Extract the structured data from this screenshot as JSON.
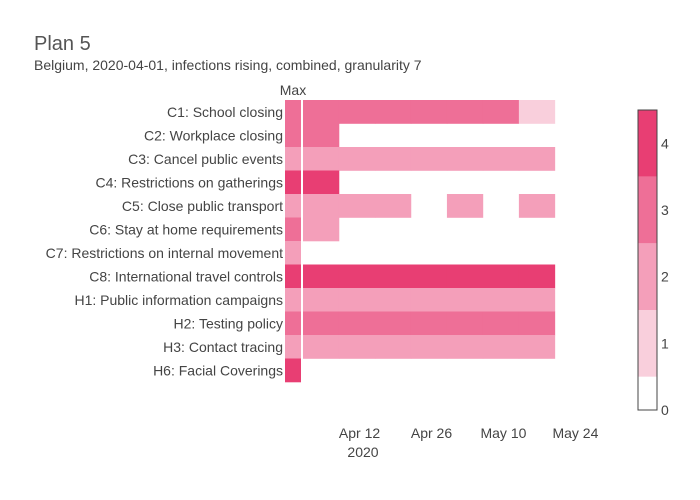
{
  "chart_data": {
    "type": "heatmap",
    "title": "Plan 5",
    "subtitle": "Belgium, 2020-04-01, infections rising, combined, granularity 7",
    "max_column_label": "Max",
    "rows": [
      "C1: School closing",
      "C2: Workplace closing",
      "C3: Cancel public events",
      "C4: Restrictions on gatherings",
      "C5: Close public transport",
      "C6: Stay at home requirements",
      "C7: Restrictions on internal movement",
      "C8: International travel controls",
      "H1: Public information campaigns",
      "H2: Testing policy",
      "H3: Contact tracing",
      "H6: Facial Coverings"
    ],
    "max_values": [
      3,
      3,
      2,
      4,
      2,
      3,
      2,
      4,
      2,
      3,
      2,
      4
    ],
    "weeks": [
      "2020-04-01",
      "2020-04-08",
      "2020-04-15",
      "2020-04-22",
      "2020-04-29",
      "2020-05-06",
      "2020-05-13"
    ],
    "values": [
      [
        3,
        3,
        3,
        3,
        3,
        3,
        1
      ],
      [
        3,
        null,
        null,
        null,
        null,
        null,
        null
      ],
      [
        2,
        2,
        2,
        2,
        2,
        2,
        2
      ],
      [
        4,
        null,
        null,
        null,
        null,
        null,
        null
      ],
      [
        2,
        2,
        2,
        null,
        2,
        null,
        2
      ],
      [
        2,
        null,
        null,
        null,
        null,
        null,
        null
      ],
      [
        null,
        null,
        null,
        null,
        null,
        null,
        null
      ],
      [
        4,
        4,
        4,
        4,
        4,
        4,
        4
      ],
      [
        2,
        2,
        2,
        2,
        2,
        2,
        2
      ],
      [
        3,
        3,
        3,
        3,
        3,
        3,
        3
      ],
      [
        2,
        2,
        2,
        2,
        2,
        2,
        2
      ],
      [
        null,
        null,
        null,
        null,
        null,
        null,
        null
      ]
    ],
    "x_ticks": [
      {
        "date": "2020-04-12",
        "label": "Apr 12"
      },
      {
        "date": "2020-04-26",
        "label": "Apr 26"
      },
      {
        "date": "2020-05-10",
        "label": "May 10"
      },
      {
        "date": "2020-05-24",
        "label": "May 24"
      }
    ],
    "x_year_label": "2020",
    "colorscale": {
      "range": [
        0,
        4.5
      ],
      "ticks": [
        "0",
        "1",
        "2",
        "3",
        "4"
      ],
      "colors": {
        "0": "#ffffff",
        "1": "#f9cfdc",
        "2": "#f49fba",
        "3": "#ee6f97",
        "4": "#e83e73"
      }
    }
  }
}
